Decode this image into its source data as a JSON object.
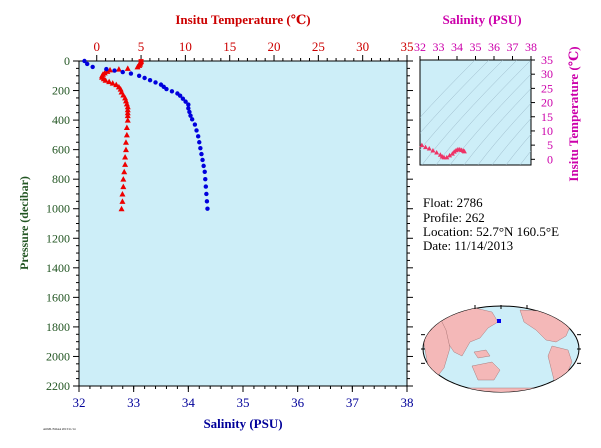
{
  "info": {
    "float_line": "Float:  2786",
    "profile_line": "Profile:  262",
    "location_line": "Location:  52.7°N  160.5°E",
    "date_line": "Date:  11/14/2013",
    "footer": "AOML/NOAA 2013/11/14"
  },
  "colors": {
    "panel_bg": "#cdeef8",
    "temperature": "#ee0000",
    "salinity": "#0000dd",
    "pressure_axis": "#225522",
    "ts_axis": "#cc00aa",
    "ts_marker": "#ee3366",
    "land": "#f4b8b8"
  },
  "chart_data": [
    {
      "type": "scatter",
      "name": "profile",
      "title": "",
      "top_axis_label": "Insitu Temperature (℃)",
      "bottom_axis_label": "Salinity (PSU)",
      "ylabel": "Pressure (decibar)",
      "temperature_range": [
        -2,
        35
      ],
      "salinity_range": [
        32,
        38
      ],
      "pressure_range": [
        0,
        2200
      ],
      "y_inverted": true,
      "temperature_ticks": [
        "0",
        "5",
        "10",
        "15",
        "20",
        "25",
        "30",
        "35"
      ],
      "salinity_ticks": [
        "32",
        "33",
        "34",
        "35",
        "36",
        "37",
        "38"
      ],
      "pressure_ticks": [
        "0",
        "200",
        "400",
        "600",
        "800",
        "1000",
        "1200",
        "1400",
        "1600",
        "1800",
        "2000",
        "2200"
      ],
      "grid": false,
      "series": [
        {
          "name": "Temperature",
          "marker": "triangle",
          "points": [
            [
              5.0,
              4
            ],
            [
              4.9,
              10
            ],
            [
              4.9,
              20
            ],
            [
              4.8,
              30
            ],
            [
              4.6,
              40
            ],
            [
              3.5,
              50
            ],
            [
              2.5,
              55
            ],
            [
              1.5,
              60
            ],
            [
              1.2,
              70
            ],
            [
              0.9,
              80
            ],
            [
              0.7,
              90
            ],
            [
              0.6,
              100
            ],
            [
              0.6,
              110
            ],
            [
              0.8,
              120
            ],
            [
              1.0,
              130
            ],
            [
              1.4,
              140
            ],
            [
              1.8,
              150
            ],
            [
              2.2,
              160
            ],
            [
              2.5,
              175
            ],
            [
              2.7,
              190
            ],
            [
              2.8,
              210
            ],
            [
              3.0,
              230
            ],
            [
              3.2,
              250
            ],
            [
              3.3,
              270
            ],
            [
              3.4,
              290
            ],
            [
              3.5,
              310
            ],
            [
              3.5,
              330
            ],
            [
              3.5,
              350
            ],
            [
              3.5,
              370
            ],
            [
              3.5,
              400
            ],
            [
              3.4,
              450
            ],
            [
              3.4,
              500
            ],
            [
              3.3,
              550
            ],
            [
              3.3,
              600
            ],
            [
              3.2,
              650
            ],
            [
              3.2,
              700
            ],
            [
              3.1,
              750
            ],
            [
              3.0,
              800
            ],
            [
              3.0,
              850
            ],
            [
              2.9,
              900
            ],
            [
              2.9,
              950
            ],
            [
              2.8,
              1000
            ]
          ]
        },
        {
          "name": "Salinity",
          "marker": "circle",
          "points": [
            [
              32.1,
              0
            ],
            [
              32.15,
              20
            ],
            [
              32.25,
              40
            ],
            [
              32.5,
              55
            ],
            [
              32.65,
              65
            ],
            [
              32.8,
              75
            ],
            [
              32.95,
              85
            ],
            [
              33.1,
              100
            ],
            [
              33.2,
              115
            ],
            [
              33.3,
              130
            ],
            [
              33.4,
              145
            ],
            [
              33.5,
              160
            ],
            [
              33.55,
              175
            ],
            [
              33.6,
              190
            ],
            [
              33.7,
              205
            ],
            [
              33.8,
              220
            ],
            [
              33.85,
              235
            ],
            [
              33.9,
              255
            ],
            [
              33.95,
              275
            ],
            [
              34.0,
              295
            ],
            [
              34.0,
              320
            ],
            [
              34.02,
              345
            ],
            [
              34.04,
              370
            ],
            [
              34.07,
              395
            ],
            [
              34.12,
              430
            ],
            [
              34.15,
              470
            ],
            [
              34.18,
              510
            ],
            [
              34.2,
              550
            ],
            [
              34.22,
              590
            ],
            [
              34.24,
              630
            ],
            [
              34.26,
              670
            ],
            [
              34.28,
              710
            ],
            [
              34.3,
              750
            ],
            [
              34.31,
              800
            ],
            [
              34.32,
              850
            ],
            [
              34.33,
              900
            ],
            [
              34.34,
              950
            ],
            [
              34.35,
              1000
            ]
          ]
        }
      ]
    },
    {
      "type": "scatter",
      "name": "ts-diagram",
      "title": "",
      "top_axis_label": "Salinity (PSU)",
      "right_axis_label": "Insitu Temperature (℃)",
      "salinity_range": [
        32,
        38
      ],
      "temperature_range": [
        -2,
        35
      ],
      "salinity_ticks": [
        "32",
        "33",
        "34",
        "35",
        "36",
        "37",
        "38"
      ],
      "temperature_ticks": [
        "0",
        "5",
        "10",
        "15",
        "20",
        "25",
        "30",
        "35"
      ],
      "grid": false,
      "series": [
        {
          "name": "TS",
          "points": [
            [
              32.1,
              5.0
            ],
            [
              32.3,
              4.3
            ],
            [
              32.5,
              3.8
            ],
            [
              32.7,
              3.1
            ],
            [
              32.9,
              2.4
            ],
            [
              33.1,
              1.6
            ],
            [
              33.2,
              1.0
            ],
            [
              33.3,
              0.7
            ],
            [
              33.45,
              0.7
            ],
            [
              33.6,
              1.4
            ],
            [
              33.75,
              2.0
            ],
            [
              33.85,
              2.7
            ],
            [
              33.95,
              3.2
            ],
            [
              34.05,
              3.5
            ],
            [
              34.15,
              3.5
            ],
            [
              34.25,
              3.3
            ],
            [
              34.35,
              3.0
            ],
            [
              34.4,
              2.8
            ]
          ]
        }
      ]
    },
    {
      "type": "map",
      "name": "location-map",
      "marker": {
        "lat": 52.7,
        "lon": 160.5
      }
    }
  ]
}
